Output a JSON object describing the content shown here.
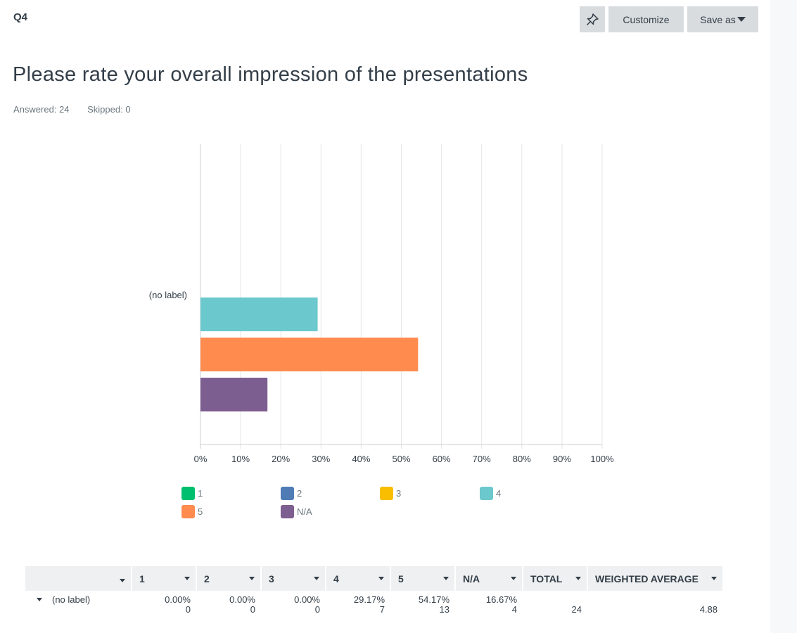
{
  "question": {
    "number": "Q4",
    "title": "Please rate your overall impression of the presentations",
    "answered": "Answered: 24",
    "skipped": "Skipped: 0"
  },
  "toolbar": {
    "pin_icon": "pin-icon",
    "customize_label": "Customize",
    "save_as_label": "Save as"
  },
  "chart_data": {
    "type": "bar",
    "orientation": "horizontal",
    "categories": [
      "(no label)"
    ],
    "series": [
      {
        "name": "1",
        "values": [
          0
        ],
        "color": "#00bf6f"
      },
      {
        "name": "2",
        "values": [
          0
        ],
        "color": "#507cb6"
      },
      {
        "name": "3",
        "values": [
          0
        ],
        "color": "#f9be00"
      },
      {
        "name": "4",
        "values": [
          29.17
        ],
        "color": "#6bc8cd"
      },
      {
        "name": "5",
        "values": [
          54.17
        ],
        "color": "#ff8b4f"
      },
      {
        "name": "N/A",
        "values": [
          16.67
        ],
        "color": "#7d5e90"
      }
    ],
    "x_ticks": [
      "0%",
      "10%",
      "20%",
      "30%",
      "40%",
      "50%",
      "60%",
      "70%",
      "80%",
      "90%",
      "100%"
    ],
    "xlim": [
      0,
      100
    ],
    "grid": true,
    "legend_position": "bottom"
  },
  "table": {
    "headers": [
      "",
      "1",
      "2",
      "3",
      "4",
      "5",
      "N/A",
      "TOTAL",
      "WEIGHTED AVERAGE"
    ],
    "row": {
      "label": "(no label)",
      "cells": [
        {
          "pct": "0.00%",
          "count": "0"
        },
        {
          "pct": "0.00%",
          "count": "0"
        },
        {
          "pct": "0.00%",
          "count": "0"
        },
        {
          "pct": "29.17%",
          "count": "7"
        },
        {
          "pct": "54.17%",
          "count": "13"
        },
        {
          "pct": "16.67%",
          "count": "4"
        }
      ],
      "total": "24",
      "weighted_average": "4.88"
    }
  }
}
